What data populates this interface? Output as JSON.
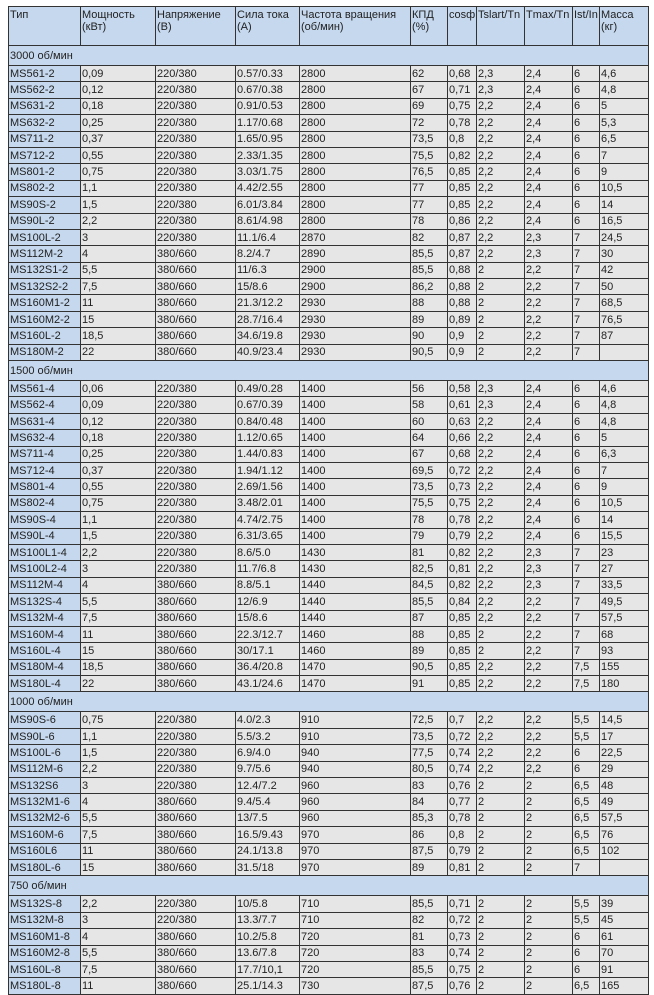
{
  "headers": [
    "Тип",
    "Мощность (кВт)",
    "Напряжение (В)",
    "Сила тока (А)",
    "Частота вращения (об/мин)",
    "КПД (%)",
    "cosф",
    "Tslart/Tn",
    "Tmax/Tn",
    "Ist/In",
    "Масса (кг)"
  ],
  "sections": [
    {
      "title": "3000 об/мин",
      "rows": [
        [
          "MS561-2",
          "0,09",
          "220/380",
          "0.57/0.33",
          "2800",
          "62",
          "0,68",
          "2,3",
          "2,4",
          "6",
          "4,6"
        ],
        [
          "MS562-2",
          "0,12",
          "220/380",
          "0.67/0.38",
          "2800",
          "67",
          "0,71",
          "2,3",
          "2,4",
          "6",
          "4,8"
        ],
        [
          "MS631-2",
          "0,18",
          "220/380",
          "0.91/0.53",
          "2800",
          "69",
          "0,75",
          "2,2",
          "2,4",
          "6",
          "5"
        ],
        [
          "MS632-2",
          "0,25",
          "220/380",
          "1.17/0.68",
          "2800",
          "72",
          "0,78",
          "2,2",
          "2,4",
          "6",
          "5,3"
        ],
        [
          "MS711-2",
          "0,37",
          "220/380",
          "1.65/0.95",
          "2800",
          "73,5",
          "0,8",
          "2,2",
          "2,4",
          "6",
          "6,5"
        ],
        [
          "MS712-2",
          "0,55",
          "220/380",
          "2.33/1.35",
          "2800",
          "75,5",
          "0,82",
          "2,2",
          "2,4",
          "6",
          "7"
        ],
        [
          "MS801-2",
          "0,75",
          "220/380",
          "3.03/1.75",
          "2800",
          "76,5",
          "0,85",
          "2,2",
          "2,4",
          "6",
          "9"
        ],
        [
          "MS802-2",
          "1,1",
          "220/380",
          "4.42/2.55",
          "2800",
          "77",
          "0,85",
          "2,2",
          "2,4",
          "6",
          "10,5"
        ],
        [
          "MS90S-2",
          "1,5",
          "220/380",
          "6.01/3.84",
          "2800",
          "77",
          "0,85",
          "2,2",
          "2,4",
          "6",
          "14"
        ],
        [
          "MS90L-2",
          "2,2",
          "220/380",
          "8.61/4.98",
          "2800",
          "78",
          "0,86",
          "2,2",
          "2,4",
          "6",
          "16,5"
        ],
        [
          "MS100L-2",
          "3",
          "220/380",
          "11.1/6.4",
          "2870",
          "82",
          "0,87",
          "2,2",
          "2,3",
          "7",
          "24,5"
        ],
        [
          "MS112M-2",
          "4",
          "380/660",
          "8.2/4.7",
          "2890",
          "85,5",
          "0,87",
          "2,2",
          "2,3",
          "7",
          "30"
        ],
        [
          "MS132S1-2",
          "5,5",
          "380/660",
          "11/6.3",
          "2900",
          "85,5",
          "0,88",
          "2",
          "2,2",
          "7",
          "42"
        ],
        [
          "MS132S2-2",
          "7,5",
          "380/660",
          "15/8.6",
          "2900",
          "86,2",
          "0,88",
          "2",
          "2,2",
          "7",
          "50"
        ],
        [
          "MS160M1-2",
          "11",
          "380/660",
          "21.3/12.2",
          "2930",
          "88",
          "0,88",
          "2",
          "2,2",
          "7",
          "68,5"
        ],
        [
          "MS160M2-2",
          "15",
          "380/660",
          "28.7/16.4",
          "2930",
          "89",
          "0,89",
          "2",
          "2,2",
          "7",
          "76,5"
        ],
        [
          "MS160L-2",
          "18,5",
          "380/660",
          "34.6/19.8",
          "2930",
          "90",
          "0,9",
          "2",
          "2,2",
          "7",
          "87"
        ],
        [
          "MS180M-2",
          "22",
          "380/660",
          "40.9/23.4",
          "2930",
          "90,5",
          "0,9",
          "2",
          "2,2",
          "7",
          ""
        ]
      ]
    },
    {
      "title": "1500 об/мин",
      "rows": [
        [
          "MS561-4",
          "0,06",
          "220/380",
          "0.49/0.28",
          "1400",
          "56",
          "0,58",
          "2,3",
          "2,4",
          "6",
          "4,6"
        ],
        [
          "MS562-4",
          "0,09",
          "220/380",
          "0.67/0.39",
          "1400",
          "58",
          "0,61",
          "2,3",
          "2,4",
          "6",
          "4,8"
        ],
        [
          "MS631-4",
          "0,12",
          "220/380",
          "0.84/0.48",
          "1400",
          "60",
          "0,63",
          "2,2",
          "2,4",
          "6",
          "4,8"
        ],
        [
          "MS632-4",
          "0,18",
          "220/380",
          "1.12/0.65",
          "1400",
          "64",
          "0,66",
          "2,2",
          "2,4",
          "6",
          "5"
        ],
        [
          "MS711-4",
          "0,25",
          "220/380",
          "1.44/0.83",
          "1400",
          "67",
          "0,68",
          "2,2",
          "2,4",
          "6",
          "6,3"
        ],
        [
          "MS712-4",
          "0,37",
          "220/380",
          "1.94/1.12",
          "1400",
          "69,5",
          "0,72",
          "2,2",
          "2,4",
          "6",
          "7"
        ],
        [
          "MS801-4",
          "0,55",
          "220/380",
          "2.69/1.56",
          "1400",
          "73,5",
          "0,73",
          "2,2",
          "2,4",
          "6",
          "9"
        ],
        [
          "MS802-4",
          "0,75",
          "220/380",
          "3.48/2.01",
          "1400",
          "75,5",
          "0,75",
          "2,2",
          "2,4",
          "6",
          "10,5"
        ],
        [
          "MS90S-4",
          "1,1",
          "220/380",
          "4.74/2.75",
          "1400",
          "78",
          "0,78",
          "2,2",
          "2,4",
          "6",
          "14"
        ],
        [
          "MS90L-4",
          "1,5",
          "220/380",
          "6.31/3.65",
          "1400",
          "79",
          "0,79",
          "2,2",
          "2,4",
          "6",
          "15,5"
        ],
        [
          "MS100L1-4",
          "2,2",
          "220/380",
          "8.6/5.0",
          "1430",
          "81",
          "0,82",
          "2,2",
          "2,3",
          "7",
          "23"
        ],
        [
          "MS100L2-4",
          "3",
          "220/380",
          "11.7/6.8",
          "1430",
          "82,5",
          "0,81",
          "2,2",
          "2,3",
          "7",
          "27"
        ],
        [
          "MS112M-4",
          "4",
          "380/660",
          "8.8/5.1",
          "1440",
          "84,5",
          "0,82",
          "2,2",
          "2,3",
          "7",
          "33,5"
        ],
        [
          "MS132S-4",
          "5,5",
          "380/660",
          "12/6.9",
          "1440",
          "85,5",
          "0,84",
          "2,2",
          "2,2",
          "7",
          "49,5"
        ],
        [
          "MS132M-4",
          "7,5",
          "380/660",
          "15/8.6",
          "1440",
          "87",
          "0,85",
          "2,2",
          "2,2",
          "7",
          "57,5"
        ],
        [
          "MS160M-4",
          "11",
          "380/660",
          "22.3/12.7",
          "1460",
          "88",
          "0,85",
          "2",
          "2,2",
          "7",
          "68"
        ],
        [
          "MS160L-4",
          "15",
          "380/660",
          "30/17.1",
          "1460",
          "89",
          "0,85",
          "2",
          "2,2",
          "7",
          "93"
        ],
        [
          "MS180M-4",
          "18,5",
          "380/660",
          "36.4/20.8",
          "1470",
          "90,5",
          "0,85",
          "2,2",
          "2,2",
          "7,5",
          "155"
        ],
        [
          "MS180L-4",
          "22",
          "380/660",
          "43.1/24.6",
          "1470",
          "91",
          "0,85",
          "2,2",
          "2,2",
          "7,5",
          "180"
        ]
      ]
    },
    {
      "title": "1000 об/мин",
      "rows": [
        [
          "MS90S-6",
          "0,75",
          "220/380",
          "4.0/2.3",
          "910",
          "72,5",
          "0,7",
          "2,2",
          "2,2",
          "5,5",
          "14,5"
        ],
        [
          "MS90L-6",
          "1,1",
          "220/380",
          "5.5/3.2",
          "910",
          "73,5",
          "0,72",
          "2,2",
          "2,2",
          "5,5",
          "17"
        ],
        [
          "MS100L-6",
          "1,5",
          "220/380",
          "6.9/4.0",
          "940",
          "77,5",
          "0,74",
          "2,2",
          "2,2",
          "6",
          "22,5"
        ],
        [
          "MS112M-6",
          "2,2",
          "220/380",
          "9.7/5.6",
          "940",
          "80,5",
          "0,74",
          "2,2",
          "2,2",
          "6",
          "29"
        ],
        [
          "MS132S6",
          "3",
          "220/380",
          "12.4/7.2",
          "960",
          "83",
          "0,76",
          "2",
          "2",
          "6,5",
          "48"
        ],
        [
          "MS132M1-6",
          "4",
          "380/660",
          "9.4/5.4",
          "960",
          "84",
          "0,77",
          "2",
          "2",
          "6,5",
          "49"
        ],
        [
          "MS132M2-6",
          "5,5",
          "380/660",
          "13/7.5",
          "960",
          "85,3",
          "0,78",
          "2",
          "2",
          "6,5",
          "57,5"
        ],
        [
          "MS160M-6",
          "7,5",
          "380/660",
          "16.5/9.43",
          "970",
          "86",
          "0,8",
          "2",
          "2",
          "6,5",
          "76"
        ],
        [
          "MS160L6",
          "11",
          "380/660",
          "24.1/13.8",
          "970",
          "87,5",
          "0,79",
          "2",
          "2",
          "6,5",
          "102"
        ],
        [
          "MS180L-6",
          "15",
          "380/660",
          "31.5/18",
          "970",
          "89",
          "0,81",
          "2",
          "2",
          "7",
          ""
        ]
      ]
    },
    {
      "title": "750 об/мин",
      "rows": [
        [
          "MS132S-8",
          "2,2",
          "220/380",
          "10/5.8",
          "710",
          "85,5",
          "0,71",
          "2",
          "2",
          "5,5",
          "39"
        ],
        [
          "MS132M-8",
          "3",
          "220/380",
          "13.3/7.7",
          "710",
          "82",
          "0,72",
          "2",
          "2",
          "5,5",
          "45"
        ],
        [
          "MS160M1-8",
          "4",
          "380/660",
          "10.2/5.8",
          "720",
          "81",
          "0,73",
          "2",
          "2",
          "6",
          "61"
        ],
        [
          "MS160M2-8",
          "5,5",
          "380/660",
          "13.6/7.8",
          "720",
          "83",
          "0,74",
          "2",
          "2",
          "6",
          "70"
        ],
        [
          "MS160L-8",
          "7,5",
          "380/660",
          "17.7/10,1",
          "720",
          "85,5",
          "0,75",
          "2",
          "2",
          "6",
          "91"
        ],
        [
          "MS180L-8",
          "11",
          "380/660",
          "25.1/14.3",
          "730",
          "87,5",
          "0,76",
          "2",
          "2",
          "6,5",
          "165"
        ]
      ]
    }
  ]
}
